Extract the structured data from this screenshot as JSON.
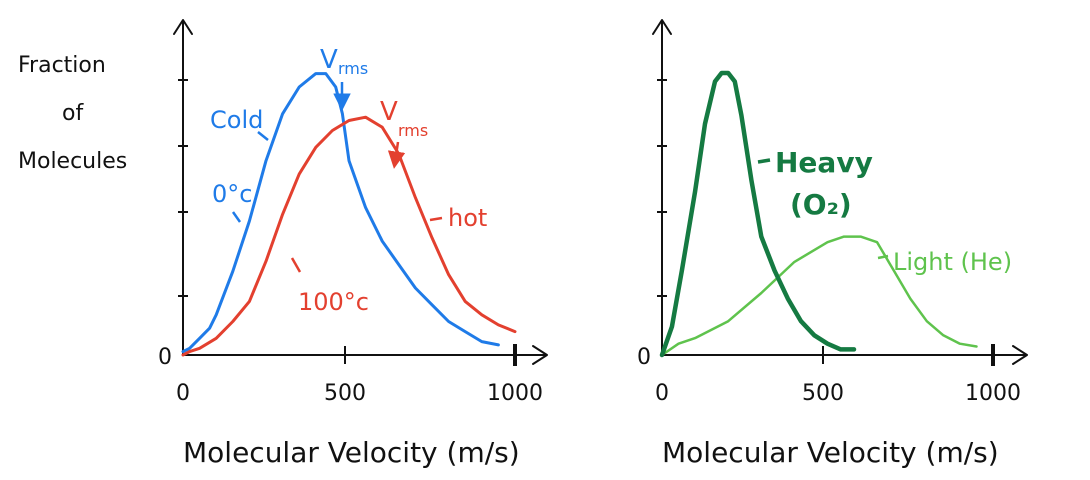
{
  "chart_data": [
    {
      "type": "line",
      "title": "",
      "ylabel": "Fraction of Molecules",
      "ylabel_lines": [
        "Fraction",
        "of",
        "Molecules"
      ],
      "xlabel": "Molecular Velocity (m/s)",
      "xlim": [
        0,
        1000
      ],
      "ylim": [
        0,
        1
      ],
      "x_ticks": [
        0,
        500,
        1000
      ],
      "y_tick_labels": [
        "0"
      ],
      "grid": false,
      "colors": {
        "cold": "#1f7be8",
        "hot": "#e3402f",
        "axis": "#111111"
      },
      "series": [
        {
          "name": "cold",
          "color": "#1f7be8",
          "x": [
            0,
            20,
            50,
            80,
            100,
            150,
            200,
            250,
            300,
            350,
            400,
            430,
            460,
            480,
            500,
            550,
            600,
            650,
            700,
            750,
            800,
            850,
            900,
            950
          ],
          "y": [
            0.01,
            0.02,
            0.05,
            0.08,
            0.12,
            0.25,
            0.4,
            0.58,
            0.72,
            0.8,
            0.84,
            0.84,
            0.8,
            0.72,
            0.58,
            0.44,
            0.34,
            0.27,
            0.2,
            0.15,
            0.1,
            0.07,
            0.04,
            0.03
          ]
        },
        {
          "name": "hot",
          "color": "#e3402f",
          "x": [
            0,
            20,
            50,
            100,
            150,
            200,
            250,
            300,
            350,
            400,
            450,
            500,
            550,
            600,
            650,
            700,
            750,
            800,
            850,
            900,
            950,
            1000
          ],
          "y": [
            0.0,
            0.01,
            0.02,
            0.05,
            0.1,
            0.16,
            0.28,
            0.42,
            0.54,
            0.62,
            0.67,
            0.7,
            0.71,
            0.68,
            0.6,
            0.47,
            0.35,
            0.24,
            0.16,
            0.12,
            0.09,
            0.07
          ]
        }
      ],
      "annotations": {
        "vrms_cold": {
          "v": "V",
          "sub": "rms",
          "x": 430
        },
        "vrms_hot": {
          "v": "V",
          "sub": "rms",
          "x": 600
        },
        "cold_label": "Cold",
        "zero_c_label": "0°c",
        "hot_label": "hot",
        "hundred_c_label": "100°c"
      }
    },
    {
      "type": "line",
      "title": "",
      "xlabel": "Molecular Velocity (m/s)",
      "xlim": [
        0,
        1000
      ],
      "ylim": [
        0,
        1
      ],
      "x_ticks": [
        0,
        500,
        1000
      ],
      "y_tick_labels": [
        "0"
      ],
      "grid": false,
      "colors": {
        "heavy": "#157a42",
        "light": "#5fc34d",
        "axis": "#111111"
      },
      "series": [
        {
          "name": "Heavy (O₂)",
          "label_lines": [
            "Heavy",
            "(O₂)"
          ],
          "color": "#157a42",
          "x": [
            0,
            30,
            60,
            100,
            130,
            160,
            180,
            200,
            220,
            240,
            270,
            300,
            340,
            380,
            420,
            460,
            500,
            540,
            580
          ],
          "y": [
            0.0,
            0.1,
            0.3,
            0.58,
            0.82,
            0.97,
            1.0,
            1.0,
            0.97,
            0.85,
            0.62,
            0.42,
            0.3,
            0.2,
            0.12,
            0.07,
            0.04,
            0.02,
            0.02
          ]
        },
        {
          "name": "Light (He)",
          "color": "#5fc34d",
          "x": [
            0,
            50,
            100,
            200,
            300,
            400,
            500,
            550,
            600,
            650,
            700,
            750,
            800,
            850,
            900,
            950
          ],
          "y": [
            0.0,
            0.04,
            0.06,
            0.12,
            0.22,
            0.33,
            0.4,
            0.42,
            0.42,
            0.4,
            0.3,
            0.2,
            0.12,
            0.07,
            0.04,
            0.03
          ]
        }
      ]
    }
  ]
}
